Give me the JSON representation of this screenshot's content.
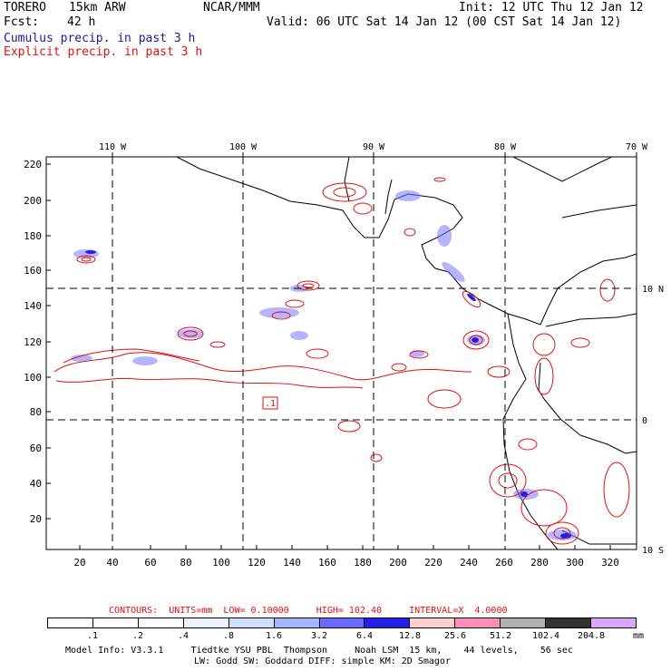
{
  "header": {
    "model_name": "TORERO",
    "resolution": "15km ARW",
    "org": "NCAR/MMM",
    "init": "Init: 12 UTC Thu 12 Jan 12",
    "fcst_label": "Fcst:",
    "fcst_value": "42 h",
    "valid": "Valid: 06 UTC Sat 14 Jan 12 (00 CST Sat 14 Jan 12)",
    "field1": "Cumulus precip. in past 3 h",
    "field2": "Explicit precip. in past 3 h"
  },
  "map": {
    "lon_labels": [
      "110 W",
      "100 W",
      "90 W",
      "80 W",
      "70 W"
    ],
    "lat_labels": [
      "10 N",
      "0",
      "10 S"
    ],
    "y_ticks": [
      "220",
      "200",
      "180",
      "160",
      "140",
      "120",
      "100",
      "80",
      "60",
      "40",
      "20"
    ],
    "x_ticks": [
      "20",
      "40",
      "60",
      "80",
      "100",
      "120",
      "140",
      "160",
      "180",
      "200",
      "220",
      "240",
      "260",
      "280",
      "300",
      "320"
    ],
    "low_label": ".1"
  },
  "contours": {
    "text": "CONTOURS:  UNITS=mm  LOW= 0.10000     HIGH= 102.40     INTERVAL=X  4.0000"
  },
  "legend": {
    "labels": [
      ".1",
      ".2",
      ".4",
      ".8",
      "1.6",
      "3.2",
      "6.4",
      "12.8",
      "25.6",
      "51.2",
      "102.4",
      "204.8"
    ],
    "unit": "mm",
    "colors": [
      "#ffffff",
      "#ffffff",
      "#ffffff",
      "#eef3ff",
      "#cfe0ff",
      "#a4b6ff",
      "#6b6bff",
      "#2020e8",
      "#ffcfcf",
      "#ff8fb8",
      "#b0b0b0",
      "#333333",
      "#d8a8ff"
    ]
  },
  "model_info": {
    "line1": "Model Info: V3.3.1     Tiedtke YSU PBL  Thompson     Noah LSM  15 km,    44 levels,    56 sec",
    "line2": "LW: Godd SW: Goddard DIFF: simple KM: 2D Smagor"
  }
}
